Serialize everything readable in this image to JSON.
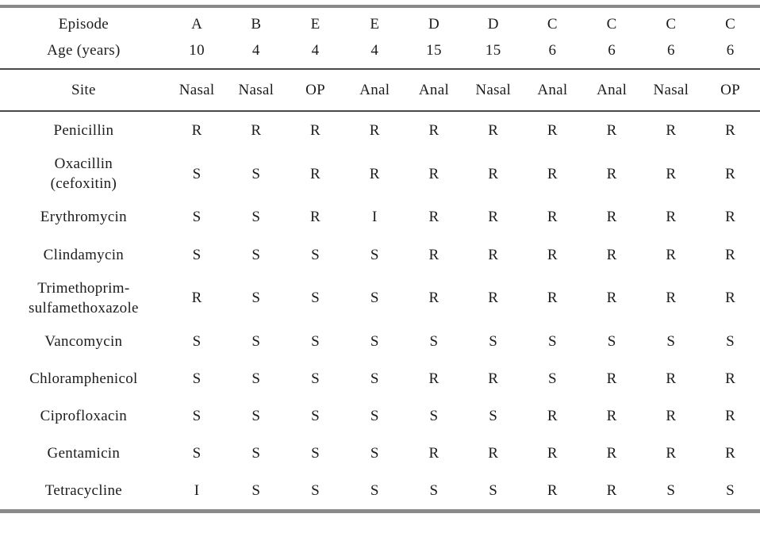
{
  "colors": {
    "text": "#1c1c1c",
    "rule_thick": "#8a8a8a",
    "rule_thin": "#4a4a4a",
    "background": "#ffffff"
  },
  "chart_data": {
    "type": "table",
    "title": "",
    "header_rows": [
      {
        "key": "episode",
        "label": "Episode",
        "lines": [
          "Episode"
        ],
        "values": [
          "A",
          "B",
          "E",
          "E",
          "D",
          "D",
          "C",
          "C",
          "C",
          "C"
        ]
      },
      {
        "key": "age",
        "label": "Age (years)",
        "lines": [
          "Age (years)"
        ],
        "values": [
          "10",
          "4",
          "4",
          "4",
          "15",
          "15",
          "6",
          "6",
          "6",
          "6"
        ]
      },
      {
        "key": "site",
        "label": "Site",
        "lines": [
          "Site"
        ],
        "values": [
          "Nasal",
          "Nasal",
          "OP",
          "Anal",
          "Anal",
          "Nasal",
          "Anal",
          "Anal",
          "Nasal",
          "OP"
        ]
      }
    ],
    "rows": [
      {
        "label": "Penicillin",
        "lines": [
          "Penicillin"
        ],
        "values": [
          "R",
          "R",
          "R",
          "R",
          "R",
          "R",
          "R",
          "R",
          "R",
          "R"
        ]
      },
      {
        "label": "Oxacillin (cefoxitin)",
        "lines": [
          "Oxacillin",
          "(cefoxitin)"
        ],
        "values": [
          "S",
          "S",
          "R",
          "R",
          "R",
          "R",
          "R",
          "R",
          "R",
          "R"
        ]
      },
      {
        "label": "Erythromycin",
        "lines": [
          "Erythromycin"
        ],
        "values": [
          "S",
          "S",
          "R",
          "I",
          "R",
          "R",
          "R",
          "R",
          "R",
          "R"
        ]
      },
      {
        "label": "Clindamycin",
        "lines": [
          "Clindamycin"
        ],
        "values": [
          "S",
          "S",
          "S",
          "S",
          "R",
          "R",
          "R",
          "R",
          "R",
          "R"
        ]
      },
      {
        "label": "Trimethoprim-sulfamethoxazole",
        "lines": [
          "Trimethoprim-",
          "sulfamethoxazole"
        ],
        "values": [
          "R",
          "S",
          "S",
          "S",
          "R",
          "R",
          "R",
          "R",
          "R",
          "R"
        ]
      },
      {
        "label": "Vancomycin",
        "lines": [
          "Vancomycin"
        ],
        "values": [
          "S",
          "S",
          "S",
          "S",
          "S",
          "S",
          "S",
          "S",
          "S",
          "S"
        ]
      },
      {
        "label": "Chloramphenicol",
        "lines": [
          "Chloramphenicol"
        ],
        "values": [
          "S",
          "S",
          "S",
          "S",
          "R",
          "R",
          "S",
          "R",
          "R",
          "R"
        ]
      },
      {
        "label": "Ciprofloxacin",
        "lines": [
          "Ciprofloxacin"
        ],
        "values": [
          "S",
          "S",
          "S",
          "S",
          "S",
          "S",
          "R",
          "R",
          "R",
          "R"
        ]
      },
      {
        "label": "Gentamicin",
        "lines": [
          "Gentamicin"
        ],
        "values": [
          "S",
          "S",
          "S",
          "S",
          "R",
          "R",
          "R",
          "R",
          "R",
          "R"
        ]
      },
      {
        "label": "Tetracycline",
        "lines": [
          "Tetracycline"
        ],
        "values": [
          "I",
          "S",
          "S",
          "S",
          "S",
          "S",
          "R",
          "R",
          "S",
          "S"
        ]
      }
    ]
  }
}
